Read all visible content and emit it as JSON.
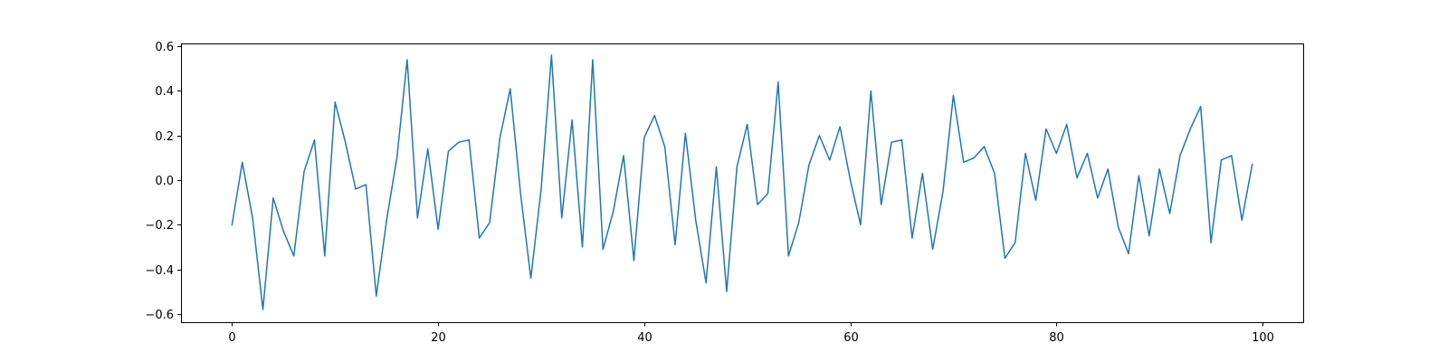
{
  "chart_data": {
    "type": "line",
    "title": "",
    "xlabel": "",
    "ylabel": "",
    "xlim": [
      -4.95,
      103.95
    ],
    "ylim": [
      -0.637,
      0.613
    ],
    "xticks": [
      0,
      20,
      40,
      60,
      80,
      100
    ],
    "xtick_labels": [
      "0",
      "20",
      "40",
      "60",
      "80",
      "100"
    ],
    "yticks": [
      -0.6,
      -0.4,
      -0.2,
      0.0,
      0.2,
      0.4,
      0.6
    ],
    "ytick_labels": [
      "−0.6",
      "−0.4",
      "−0.2",
      "0.0",
      "0.2",
      "0.4",
      "0.6"
    ],
    "grid": false,
    "legend": "none",
    "series": [
      {
        "color": "#1f77b4",
        "x": [
          0,
          1,
          2,
          3,
          4,
          5,
          6,
          7,
          8,
          9,
          10,
          11,
          12,
          13,
          14,
          15,
          16,
          17,
          18,
          19,
          20,
          21,
          22,
          23,
          24,
          25,
          26,
          27,
          28,
          29,
          30,
          31,
          32,
          33,
          34,
          35,
          36,
          37,
          38,
          39,
          40,
          41,
          42,
          43,
          44,
          45,
          46,
          47,
          48,
          49,
          50,
          51,
          52,
          53,
          54,
          55,
          56,
          57,
          58,
          59,
          60,
          61,
          62,
          63,
          64,
          65,
          66,
          67,
          68,
          69,
          70,
          71,
          72,
          73,
          74,
          75,
          76,
          77,
          78,
          79,
          80,
          81,
          82,
          83,
          84,
          85,
          86,
          87,
          88,
          89,
          90,
          91,
          92,
          93,
          94,
          95,
          96,
          97,
          98,
          99
        ],
        "values": [
          -0.2,
          0.08,
          -0.17,
          -0.58,
          -0.08,
          -0.23,
          -0.34,
          0.04,
          0.18,
          -0.34,
          0.35,
          0.17,
          -0.04,
          -0.02,
          -0.52,
          -0.18,
          0.1,
          0.54,
          -0.17,
          0.14,
          -0.22,
          0.13,
          0.17,
          0.18,
          -0.26,
          -0.19,
          0.19,
          0.41,
          -0.06,
          -0.44,
          -0.04,
          0.56,
          -0.17,
          0.27,
          -0.3,
          0.54,
          -0.31,
          -0.14,
          0.11,
          -0.36,
          0.19,
          0.29,
          0.15,
          -0.29,
          0.21,
          -0.18,
          -0.46,
          0.06,
          -0.5,
          0.06,
          0.25,
          -0.11,
          -0.06,
          0.44,
          -0.34,
          -0.19,
          0.07,
          0.2,
          0.09,
          0.24,
          0.0,
          -0.2,
          0.4,
          -0.11,
          0.17,
          0.18,
          -0.26,
          0.03,
          -0.31,
          -0.05,
          0.38,
          0.08,
          0.1,
          0.15,
          0.03,
          -0.35,
          -0.28,
          0.12,
          -0.09,
          0.23,
          0.12,
          0.25,
          0.01,
          0.12,
          -0.08,
          0.05,
          -0.21,
          -0.33,
          0.02,
          -0.25,
          0.05,
          -0.15,
          0.11,
          0.23,
          0.33,
          -0.28,
          0.09,
          0.11,
          -0.18,
          0.07
        ]
      }
    ]
  }
}
